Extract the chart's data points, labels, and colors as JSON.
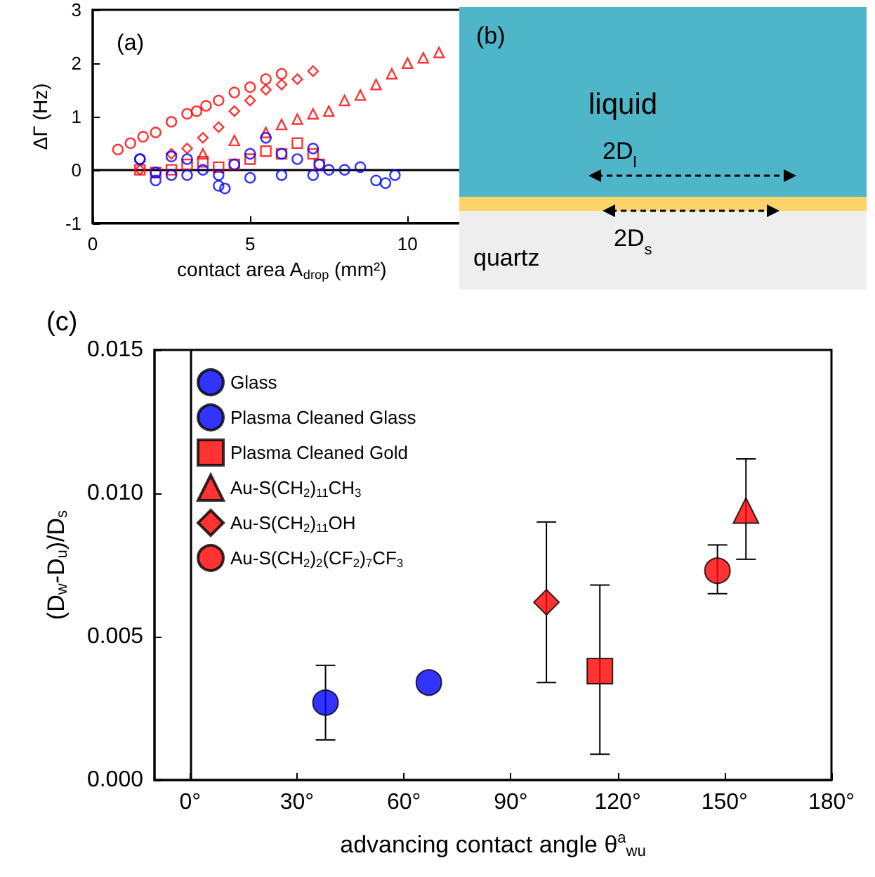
{
  "chart_data": [
    {
      "type": "scatter",
      "title": "(a)",
      "xlabel": "contact area A$_{drop}$ (mm²)",
      "ylabel": "ΔΓ (Hz)",
      "xlim": [
        0,
        12
      ],
      "xticks": [
        0,
        5,
        10
      ],
      "ylim": [
        -1,
        3
      ],
      "yticks": [
        -1,
        0,
        1,
        2,
        3
      ],
      "grid": false,
      "legend": false,
      "ref_lines": [
        {
          "axis": "y",
          "value": 0,
          "color": "#000000"
        }
      ],
      "series": [
        {
          "color": "#ff0000",
          "marker": "circle",
          "x": [
            0.8,
            1.2,
            1.6,
            2,
            2.5,
            3,
            3.3,
            3.6,
            4,
            4.5,
            5,
            5.5,
            6
          ],
          "values": [
            0.38,
            0.5,
            0.62,
            0.7,
            0.9,
            1.05,
            1.1,
            1.2,
            1.3,
            1.45,
            1.55,
            1.7,
            1.8
          ]
        },
        {
          "color": "#ff0000",
          "marker": "diamond",
          "x": [
            1.5,
            2.5,
            3,
            3.5,
            4,
            4.5,
            5,
            5.5,
            6,
            6.5,
            7
          ],
          "values": [
            0,
            0.3,
            0.4,
            0.6,
            0.8,
            1.1,
            1.3,
            1.5,
            1.6,
            1.7,
            1.85
          ]
        },
        {
          "color": "#ff0000",
          "marker": "triangle",
          "x": [
            3.5,
            4.5,
            5.5,
            6,
            6.5,
            7,
            7.5,
            8,
            8.5,
            9,
            9.5,
            10,
            10.5,
            11
          ],
          "values": [
            0.3,
            0.55,
            0.7,
            0.85,
            0.95,
            1.05,
            1.1,
            1.3,
            1.4,
            1.6,
            1.8,
            2,
            2.1,
            2.2
          ]
        },
        {
          "color": "#ff0000",
          "marker": "square",
          "x": [
            1.5,
            2,
            2.5,
            3,
            3.5,
            4,
            4.5,
            5,
            5.5,
            6,
            6.5,
            7,
            7.2
          ],
          "values": [
            0,
            -0.05,
            0,
            0.1,
            0.15,
            0.05,
            0.1,
            0.2,
            0.35,
            0.3,
            0.5,
            0.3,
            0.1
          ]
        },
        {
          "color": "#0000ff",
          "marker": "circle",
          "x": [
            1.5,
            2,
            2.5,
            3,
            3.5,
            4,
            4.2,
            4.5,
            5,
            5.5,
            6,
            6.5,
            7,
            7.2
          ],
          "values": [
            0.2,
            -0.2,
            0.25,
            0.2,
            0,
            -0.3,
            -0.35,
            0.1,
            0.3,
            0.6,
            0.3,
            0.2,
            0.4,
            0.1
          ]
        },
        {
          "color": "#0000ff",
          "marker": "circle",
          "x": [
            1.5,
            2,
            2.5,
            3,
            4,
            5,
            6,
            7,
            7.5,
            8,
            8.5,
            9,
            9.3,
            9.6
          ],
          "values": [
            0.2,
            -0.05,
            -0.1,
            -0.1,
            -0.1,
            -0.15,
            -0.1,
            -0.1,
            0,
            0,
            0.05,
            -0.2,
            -0.25,
            -0.1
          ]
        }
      ]
    },
    {
      "type": "other",
      "title": "(b)",
      "annotations": [
        "liquid",
        "2D$_{l}$",
        "quartz",
        "2D$_{s}$"
      ]
    },
    {
      "type": "scatter",
      "title": "(c)",
      "xlabel": "advancing contact angle θ$^{a}$$_{wu}$",
      "ylabel": "(D$_{w}$-D$_{u}$)/D$_{s}$",
      "xlim": [
        -10,
        180
      ],
      "xticks": [
        {
          "value": 0,
          "label": "0°"
        },
        {
          "value": 30,
          "label": "30°"
        },
        {
          "value": 60,
          "label": "60°"
        },
        {
          "value": 90,
          "label": "90°"
        },
        {
          "value": 120,
          "label": "120°"
        },
        {
          "value": 150,
          "label": "150°"
        },
        {
          "value": 180,
          "label": "180°"
        }
      ],
      "ylim": [
        0,
        0.015
      ],
      "yticks": [
        {
          "value": 0,
          "label": "0.000"
        },
        {
          "value": 0.005,
          "label": "0.005"
        },
        {
          "value": 0.01,
          "label": "0.010"
        },
        0.015
      ],
      "grid": false,
      "legend": "top left",
      "ref_lines": [
        {
          "axis": "x",
          "value": 0,
          "color": "#000000"
        }
      ],
      "series": [
        {
          "name": "Glass",
          "color": "#0000ff",
          "marker": "circle",
          "x": [
            38
          ],
          "values": [
            0.0027
          ],
          "errors": [
            [
              0.0014,
              0.004
            ]
          ]
        },
        {
          "name": "Plasma Cleaned Glass",
          "color": "#0000ff",
          "x": [
            67
          ],
          "values": [
            0.0034
          ]
        },
        {
          "name": "Plasma Cleaned Gold",
          "color": "#ff0000",
          "marker": "square",
          "x": [
            115
          ],
          "values": [
            0.0038
          ],
          "errors": [
            [
              0.0009,
              0.0068
            ]
          ]
        },
        {
          "name": "Au-S(CH$_{2}$)$_{11}$CH$_{3}$",
          "color": "#ff0000",
          "marker": "triangle",
          "x": [
            156
          ],
          "values": [
            0.0094
          ],
          "errors": [
            [
              0.0077,
              0.0112
            ]
          ]
        },
        {
          "name": "Au-S(CH$_{2}$)$_{11}$OH",
          "color": "#ff0000",
          "marker": "diamond",
          "x": [
            100
          ],
          "values": [
            0.0062
          ],
          "errors": [
            [
              0.0034,
              0.009
            ]
          ]
        },
        {
          "name": "Au-S(CH$_{2}$)$_{2}$(CF$_{2}$)$_{7}$CF$_{3}$",
          "color": "#ff0000",
          "x": [
            148
          ],
          "values": [
            0.0073
          ],
          "errors": [
            [
              0.0065,
              0.0082
            ]
          ]
        }
      ]
    }
  ]
}
